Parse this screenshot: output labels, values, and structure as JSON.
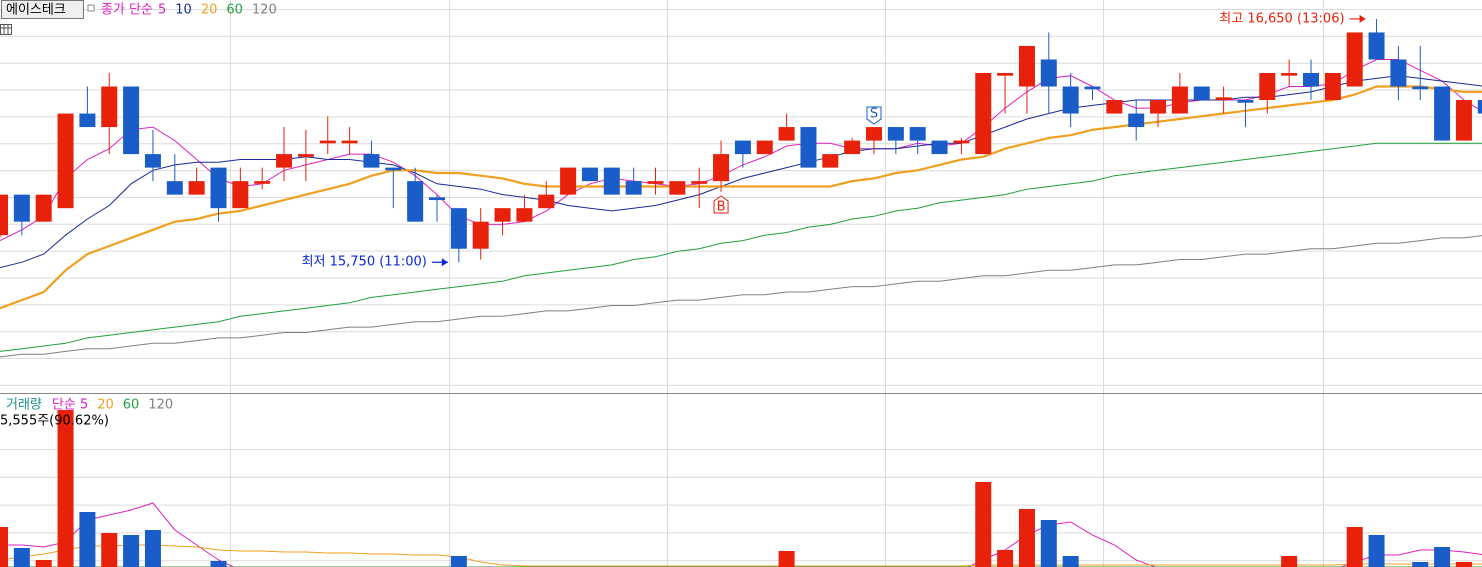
{
  "chart_data": {
    "type": "candlestick",
    "title": "에이스테크",
    "legend_label": "종가 단순",
    "categories": [
      null,
      null,
      null,
      null,
      null,
      null,
      null,
      null,
      null,
      null,
      null,
      null,
      null,
      null,
      null,
      null,
      null,
      null,
      null,
      null,
      null,
      null,
      null,
      null,
      null,
      null,
      null,
      null,
      null,
      null,
      null,
      null,
      null,
      null,
      null,
      null,
      null,
      null,
      null,
      null,
      null,
      null,
      null,
      null,
      null,
      null,
      null,
      null,
      null,
      null,
      null,
      null,
      null,
      null,
      null,
      null,
      null,
      null,
      null,
      null,
      null,
      null,
      null,
      null,
      null,
      null,
      null,
      null,
      null
    ],
    "open": [
      15850,
      16000,
      15900,
      15950,
      16300,
      16250,
      16400,
      16150,
      16050,
      16000,
      16100,
      15950,
      16040,
      16100,
      16140,
      16190,
      16190,
      16150,
      16100,
      16050,
      15990,
      15950,
      15800,
      15900,
      15900,
      15950,
      16000,
      16100,
      16100,
      16050,
      16040,
      16000,
      16040,
      16050,
      16200,
      16150,
      16200,
      16250,
      16100,
      16150,
      16200,
      16250,
      16250,
      16200,
      16190,
      16150,
      16440,
      16400,
      16500,
      16400,
      16400,
      16300,
      16300,
      16300,
      16300,
      16400,
      16350,
      16350,
      16350,
      16440,
      16450,
      16350,
      16400,
      16600,
      16500,
      16400,
      16400,
      16200,
      16350
    ],
    "high": [
      16000,
      16000,
      16000,
      16300,
      16400,
      16450,
      16400,
      16240,
      16150,
      16100,
      16100,
      16100,
      16100,
      16250,
      16240,
      16290,
      16250,
      16200,
      16100,
      16100,
      16000,
      15950,
      15950,
      15950,
      16000,
      16050,
      16100,
      16100,
      16100,
      16100,
      16100,
      16050,
      16100,
      16200,
      16200,
      16200,
      16300,
      16250,
      16150,
      16210,
      16250,
      16250,
      16250,
      16200,
      16210,
      16450,
      16450,
      16550,
      16600,
      16450,
      16400,
      16350,
      16350,
      16350,
      16450,
      16400,
      16400,
      16350,
      16450,
      16500,
      16500,
      16450,
      16600,
      16650,
      16550,
      16550,
      16400,
      16350,
      16350
    ],
    "low": [
      15840,
      15850,
      15900,
      15950,
      16250,
      16150,
      16150,
      16050,
      16000,
      16000,
      15900,
      15950,
      16020,
      16050,
      16050,
      16150,
      16150,
      16100,
      15950,
      15900,
      15900,
      15750,
      15760,
      15850,
      15900,
      15950,
      16000,
      16050,
      16000,
      16000,
      16000,
      16000,
      15950,
      16010,
      16100,
      16150,
      16200,
      16100,
      16100,
      16150,
      16150,
      16150,
      16150,
      16150,
      16150,
      16150,
      16300,
      16300,
      16300,
      16250,
      16350,
      16300,
      16200,
      16250,
      16300,
      16350,
      16300,
      16250,
      16300,
      16400,
      16350,
      16350,
      16400,
      16500,
      16350,
      16350,
      16200,
      16200,
      16300
    ],
    "close": [
      16000,
      15900,
      16000,
      16300,
      16250,
      16400,
      16150,
      16100,
      16000,
      16050,
      15950,
      16050,
      16050,
      16150,
      16150,
      16200,
      16200,
      16100,
      16090,
      15900,
      15980,
      15800,
      15900,
      15950,
      15950,
      16000,
      16100,
      16050,
      16000,
      16000,
      16050,
      16050,
      16050,
      16150,
      16150,
      16200,
      16250,
      16100,
      16150,
      16200,
      16250,
      16200,
      16200,
      16150,
      16200,
      16450,
      16450,
      16550,
      16400,
      16300,
      16390,
      16350,
      16250,
      16350,
      16400,
      16350,
      16360,
      16340,
      16450,
      16450,
      16400,
      16450,
      16600,
      16500,
      16400,
      16390,
      16200,
      16350,
      16300
    ],
    "up_color": "#e8210b",
    "down_color": "#1a5cc8",
    "ylim": [
      15270,
      16720
    ],
    "series": [
      {
        "name": "5",
        "color": "#e020c0",
        "values": [
          15830,
          15870,
          15920,
          16060,
          16130,
          16170,
          16240,
          16250,
          16200,
          16130,
          16060,
          16030,
          16040,
          16090,
          16110,
          16130,
          16150,
          16150,
          16120,
          16070,
          16000,
          15920,
          15890,
          15890,
          15900,
          15940,
          16000,
          16040,
          16060,
          16050,
          16040,
          16030,
          16040,
          16070,
          16110,
          16140,
          16180,
          16190,
          16190,
          16170,
          16170,
          16170,
          16190,
          16180,
          16190,
          16250,
          16320,
          16380,
          16430,
          16440,
          16400,
          16350,
          16320,
          16320,
          16340,
          16350,
          16350,
          16350,
          16370,
          16400,
          16400,
          16410,
          16460,
          16500,
          16500,
          16460,
          16420,
          16350,
          16300
        ]
      },
      {
        "name": "10",
        "color": "#1a2a9a",
        "values": [
          15730,
          15750,
          15780,
          15850,
          15910,
          15960,
          16040,
          16090,
          16110,
          16120,
          16120,
          16130,
          16130,
          16130,
          16140,
          16130,
          16130,
          16120,
          16110,
          16080,
          16040,
          16030,
          16020,
          16000,
          15990,
          15980,
          15960,
          15950,
          15940,
          15950,
          15960,
          15980,
          16000,
          16030,
          16060,
          16080,
          16100,
          16120,
          16140,
          16160,
          16170,
          16170,
          16180,
          16190,
          16190,
          16220,
          16250,
          16280,
          16300,
          16320,
          16330,
          16340,
          16350,
          16350,
          16350,
          16350,
          16350,
          16360,
          16360,
          16370,
          16380,
          16400,
          16420,
          16430,
          16440,
          16430,
          16420,
          16410,
          16400
        ]
      },
      {
        "name": "20",
        "color": "#f0a020",
        "values": [
          15580,
          15610,
          15640,
          15720,
          15780,
          15810,
          15840,
          15870,
          15900,
          15910,
          15930,
          15940,
          15960,
          15980,
          16000,
          16020,
          16040,
          16070,
          16090,
          16090,
          16080,
          16080,
          16070,
          16060,
          16040,
          16030,
          16030,
          16030,
          16030,
          16030,
          16030,
          16030,
          16030,
          16030,
          16030,
          16030,
          16030,
          16030,
          16030,
          16050,
          16060,
          16080,
          16090,
          16110,
          16130,
          16140,
          16170,
          16190,
          16210,
          16220,
          16240,
          16250,
          16260,
          16270,
          16280,
          16290,
          16300,
          16310,
          16320,
          16330,
          16340,
          16350,
          16370,
          16400,
          16400,
          16400,
          16390,
          16380,
          16380
        ]
      },
      {
        "name": "60",
        "color": "#20a040",
        "values": [
          15420,
          15430,
          15440,
          15450,
          15470,
          15480,
          15490,
          15500,
          15510,
          15520,
          15530,
          15550,
          15560,
          15570,
          15580,
          15590,
          15600,
          15620,
          15630,
          15640,
          15650,
          15660,
          15670,
          15680,
          15700,
          15710,
          15720,
          15730,
          15740,
          15760,
          15770,
          15790,
          15800,
          15820,
          15830,
          15850,
          15860,
          15880,
          15890,
          15910,
          15920,
          15940,
          15950,
          15970,
          15980,
          15990,
          16000,
          16020,
          16030,
          16040,
          16050,
          16070,
          16080,
          16090,
          16100,
          16110,
          16120,
          16130,
          16140,
          16150,
          16160,
          16170,
          16180,
          16190,
          16190,
          16190,
          16190,
          16190,
          16190
        ]
      },
      {
        "name": "120",
        "color": "#808080",
        "values": [
          15400,
          15410,
          15410,
          15420,
          15430,
          15430,
          15440,
          15450,
          15450,
          15460,
          15470,
          15470,
          15480,
          15490,
          15490,
          15500,
          15510,
          15510,
          15520,
          15530,
          15530,
          15540,
          15550,
          15550,
          15560,
          15570,
          15570,
          15580,
          15590,
          15590,
          15600,
          15610,
          15610,
          15620,
          15630,
          15630,
          15640,
          15640,
          15650,
          15660,
          15660,
          15670,
          15680,
          15680,
          15690,
          15700,
          15700,
          15710,
          15720,
          15720,
          15730,
          15740,
          15740,
          15750,
          15760,
          15760,
          15770,
          15780,
          15780,
          15790,
          15800,
          15800,
          15810,
          15820,
          15820,
          15830,
          15840,
          15840,
          15850
        ]
      }
    ],
    "annotations": [
      {
        "label": "최고 16,650 (13:06)",
        "value": 16650,
        "kind": "high",
        "color": "#e8210b"
      },
      {
        "label": "최저 15,750 (11:00)",
        "value": 15750,
        "kind": "low",
        "color": "#0a28d8"
      }
    ],
    "signals": [
      null,
      null,
      null,
      null,
      null,
      null,
      null,
      null,
      null,
      null,
      null,
      null,
      null,
      null,
      null,
      null,
      null,
      null,
      null,
      null,
      null,
      null,
      null,
      null,
      null,
      null,
      null,
      null,
      null,
      null,
      null,
      null,
      null,
      "B",
      null,
      null,
      null,
      null,
      null,
      null,
      "S",
      null,
      null,
      null,
      null,
      null,
      null,
      null,
      null,
      null,
      null,
      null,
      null,
      null,
      null,
      null,
      null,
      null,
      null,
      null,
      null,
      null,
      null,
      null,
      null,
      null,
      null,
      null,
      null
    ],
    "volume": {
      "title": "거래량",
      "info": "5,555주(90.62%)",
      "ylim": [
        0,
        18500
      ],
      "values": [
        5300,
        3200,
        2000,
        17000,
        6800,
        4700,
        4500,
        5000,
        500,
        500,
        1900,
        500,
        500,
        500,
        500,
        500,
        500,
        500,
        500,
        500,
        500,
        2400,
        500,
        500,
        500,
        500,
        500,
        500,
        500,
        500,
        500,
        500,
        500,
        500,
        500,
        500,
        2900,
        500,
        500,
        500,
        500,
        500,
        500,
        500,
        500,
        9800,
        3000,
        7100,
        6000,
        2400,
        500,
        500,
        500,
        500,
        500,
        500,
        500,
        500,
        500,
        2400,
        500,
        500,
        5300,
        4500,
        500,
        1800,
        3300,
        1800,
        500
      ],
      "series": [
        {
          "name": "단순 5",
          "color": "#e020c0",
          "values": [
            3500,
            3500,
            3300,
            3800,
            6000,
            6500,
            7000,
            7700,
            5000,
            3500,
            2000,
            1000,
            1000,
            1000,
            1000,
            1000,
            1000,
            1000,
            1000,
            1000,
            1000,
            1000,
            1000,
            1000,
            1000,
            1000,
            1000,
            1000,
            1000,
            1000,
            1000,
            1000,
            1000,
            1000,
            1000,
            1000,
            1000,
            1000,
            1000,
            1000,
            1000,
            1000,
            1000,
            1000,
            1000,
            2000,
            3000,
            4500,
            5500,
            5800,
            4500,
            3500,
            2000,
            1200,
            1000,
            1000,
            1000,
            1000,
            1000,
            1000,
            1000,
            1000,
            1800,
            2500,
            2500,
            3000,
            3000,
            2800,
            2500
          ]
        },
        {
          "name": "20",
          "color": "#f0a020",
          "values": [
            2000,
            2300,
            2600,
            3000,
            3400,
            3400,
            3500,
            3500,
            3400,
            3300,
            3000,
            2900,
            2900,
            2800,
            2800,
            2700,
            2700,
            2600,
            2600,
            2500,
            2500,
            2300,
            1800,
            1500,
            1400,
            1400,
            1400,
            1400,
            1400,
            1400,
            1400,
            1400,
            1400,
            1400,
            1400,
            1400,
            1400,
            1400,
            1400,
            1400,
            1400,
            1400,
            1400,
            1400,
            1400,
            1500,
            1500,
            1500,
            1500,
            1500,
            1500,
            1500,
            1500,
            1500,
            1500,
            1500,
            1500,
            1500,
            1500,
            1500,
            1500,
            1500,
            1600,
            1600,
            1600,
            1600,
            1600,
            1600,
            1600
          ]
        },
        {
          "name": "60",
          "color": "#20a040",
          "values": [
            1300,
            1300,
            1300,
            1300,
            1300,
            1300,
            1300,
            1300,
            1300,
            1300,
            1300,
            1300,
            1300,
            1300,
            1300,
            1300,
            1300,
            1300,
            1300,
            1300,
            1300,
            1300,
            1300,
            1300,
            1300,
            1300,
            1300,
            1300,
            1300,
            1300,
            1300,
            1300,
            1300,
            1300,
            1300,
            1300,
            1300,
            1300,
            1300,
            1300,
            1300,
            1300,
            1300,
            1300,
            1300,
            1300,
            1300,
            1300,
            1300,
            1300,
            1300,
            1300,
            1300,
            1300,
            1300,
            1300,
            1300,
            1300,
            1300,
            1300,
            1300,
            1300,
            1300,
            1300,
            1300,
            1300,
            1300,
            1300,
            1300
          ]
        },
        {
          "name": "120",
          "color": "#808080",
          "values": [
            1200,
            1200,
            1200,
            1200,
            1200,
            1200,
            1200,
            1200,
            1200,
            1200,
            1200,
            1200,
            1200,
            1200,
            1200,
            1200,
            1200,
            1200,
            1200,
            1200,
            1200,
            1200,
            1200,
            1200,
            1200,
            1200,
            1200,
            1200,
            1200,
            1200,
            1200,
            1200,
            1200,
            1200,
            1200,
            1200,
            1200,
            1200,
            1200,
            1200,
            1200,
            1200,
            1200,
            1200,
            1200,
            1200,
            1200,
            1200,
            1200,
            1200,
            1200,
            1200,
            1200,
            1200,
            1200,
            1200,
            1200,
            1200,
            1200,
            1200,
            1200,
            1200,
            1200,
            1200,
            1200,
            1200,
            1200,
            1200,
            1200
          ]
        }
      ]
    }
  }
}
